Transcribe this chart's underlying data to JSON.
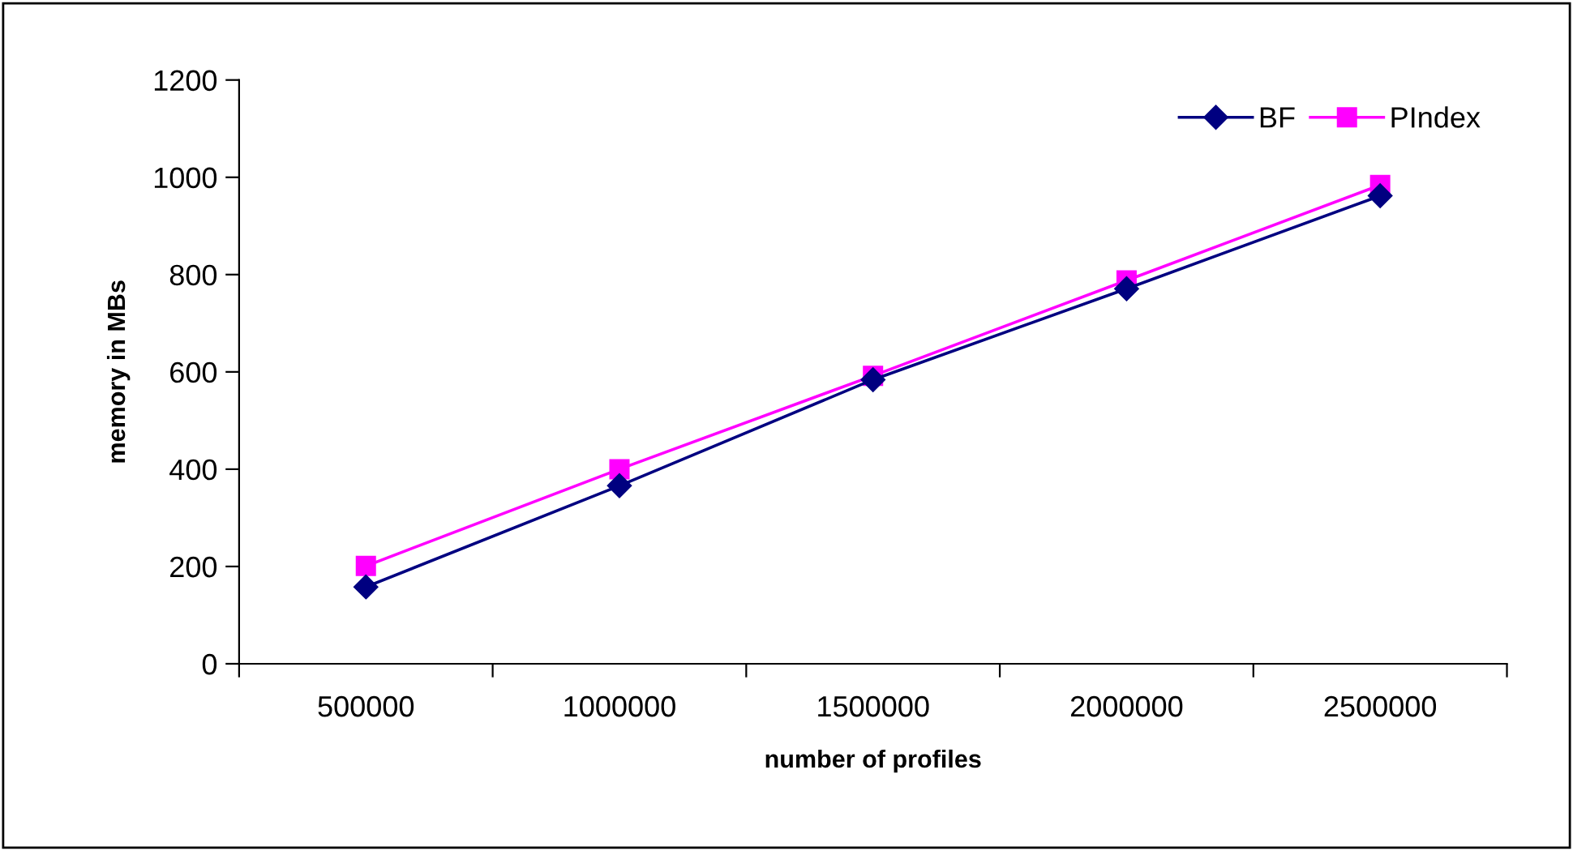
{
  "chart_data": {
    "type": "line",
    "xlabel": "number of profiles",
    "ylabel": "memory in MBs",
    "categories": [
      "500000",
      "1000000",
      "1500000",
      "2000000",
      "2500000"
    ],
    "series": [
      {
        "name": "BF",
        "color": "#000080",
        "marker": "diamond",
        "values": [
          158,
          366,
          584,
          771,
          962
        ]
      },
      {
        "name": "PIndex",
        "color": "#ff00ff",
        "marker": "square",
        "values": [
          201,
          400,
          592,
          788,
          984
        ]
      }
    ],
    "ylim": [
      0,
      1200
    ],
    "yticks": [
      0,
      200,
      400,
      600,
      800,
      1000,
      1200
    ],
    "grid": false,
    "legend": "top right",
    "line_style": "solid"
  }
}
